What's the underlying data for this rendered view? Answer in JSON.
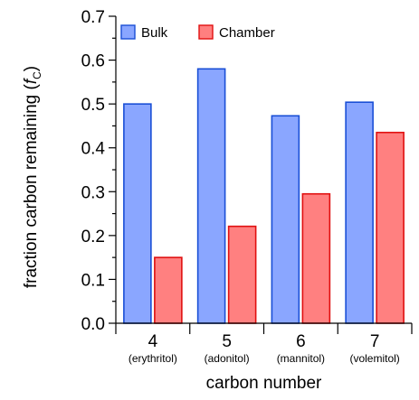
{
  "chart_data": {
    "type": "bar",
    "categories": [
      "4",
      "5",
      "6",
      "7"
    ],
    "category_sublabels": [
      "(erythritol)",
      "(adonitol)",
      "(mannitol)",
      "(volemitol)"
    ],
    "series": [
      {
        "name": "Bulk",
        "values": [
          0.5,
          0.58,
          0.473,
          0.504
        ],
        "fill": "#8aa6ff",
        "stroke": "#1a4fd6"
      },
      {
        "name": "Chamber",
        "values": [
          0.15,
          0.221,
          0.295,
          0.435
        ],
        "fill": "#ff8080",
        "stroke": "#e01010"
      }
    ],
    "xlabel": "carbon number",
    "ylabel_prefix": "fraction carbon remaining (",
    "ylabel_symbol": "f",
    "ylabel_subscript": "C",
    "ylabel_suffix": ")",
    "ylim": [
      0,
      0.7
    ],
    "y_ticks": [
      "0.0",
      "0.1",
      "0.2",
      "0.3",
      "0.4",
      "0.5",
      "0.6",
      "0.7"
    ],
    "grid": false,
    "legend_position": "top-left"
  }
}
